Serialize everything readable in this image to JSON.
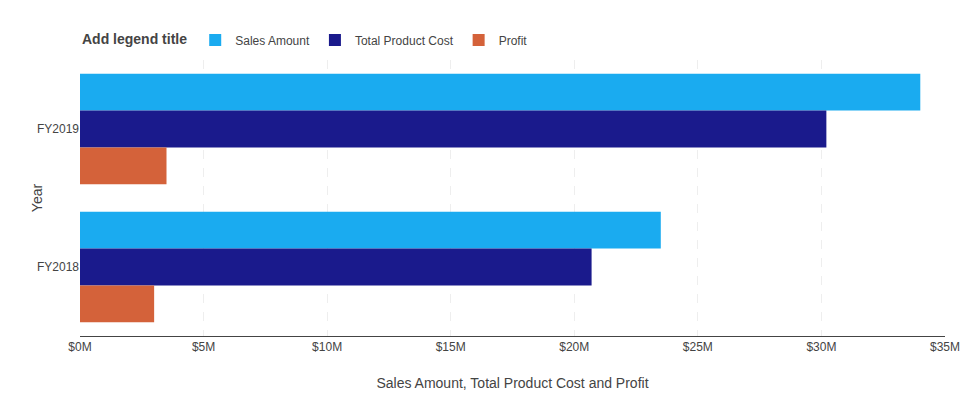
{
  "chart_data": {
    "type": "bar",
    "orientation": "horizontal",
    "categories": [
      "FY2019",
      "FY2018"
    ],
    "series": [
      {
        "name": "Sales Amount",
        "color": "#1AABF0",
        "values": [
          34000000,
          23500000
        ]
      },
      {
        "name": "Total Product Cost",
        "color": "#1A1A8C",
        "values": [
          30200000,
          20700000
        ]
      },
      {
        "name": "Profit",
        "color": "#D4623A",
        "values": [
          3500000,
          3000000
        ]
      }
    ],
    "xlabel": "Sales Amount, Total Product Cost and Profit",
    "ylabel": "Year",
    "xlim": [
      0,
      35000000
    ],
    "xticks": [
      {
        "value": 0,
        "label": "$0M"
      },
      {
        "value": 5000000,
        "label": "$5M"
      },
      {
        "value": 10000000,
        "label": "$10M"
      },
      {
        "value": 15000000,
        "label": "$15M"
      },
      {
        "value": 20000000,
        "label": "$20M"
      },
      {
        "value": 25000000,
        "label": "$25M"
      },
      {
        "value": 30000000,
        "label": "$30M"
      },
      {
        "value": 35000000,
        "label": "$35M"
      }
    ],
    "grid": true,
    "legend": "upper left",
    "legend_title": "Add legend title"
  }
}
